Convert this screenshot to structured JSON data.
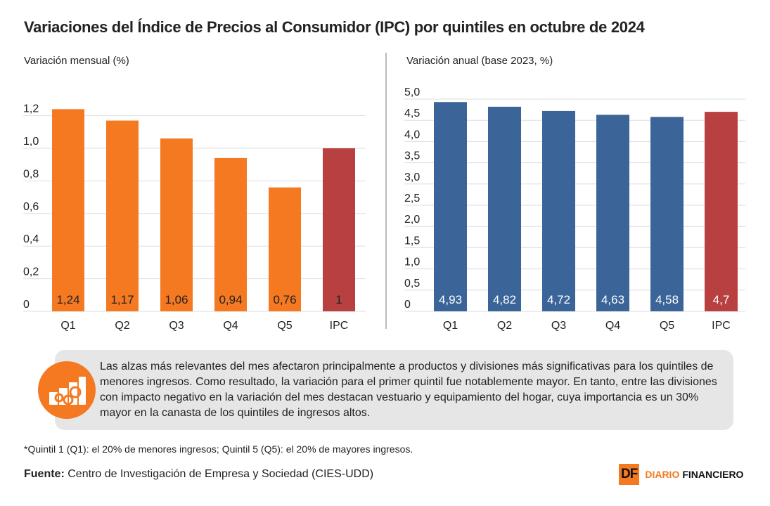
{
  "title": "Variaciones del Índice de Precios al Consumidor (IPC) por quintiles en octubre de 2024",
  "colors": {
    "quintil_left": "#f47920",
    "quintil_right": "#3b6598",
    "ipc": "#b84040",
    "note_bg": "#e6e6e6"
  },
  "chart_data": [
    {
      "type": "bar",
      "title": "Variación mensual (%)",
      "categories": [
        "Q1",
        "Q2",
        "Q3",
        "Q4",
        "Q5",
        "IPC"
      ],
      "values": [
        1.24,
        1.17,
        1.06,
        0.94,
        0.76,
        1
      ],
      "value_labels": [
        "1,24",
        "1,17",
        "1,06",
        "0,94",
        "0,76",
        "1"
      ],
      "ylim": [
        0,
        1.2
      ],
      "yticks": [
        "0",
        "0,2",
        "0,4",
        "0,6",
        "0,8",
        "1,0",
        "1,2"
      ],
      "grid": true
    },
    {
      "type": "bar",
      "title": "Variación anual (base 2023, %)",
      "categories": [
        "Q1",
        "Q2",
        "Q3",
        "Q4",
        "Q5",
        "IPC"
      ],
      "values": [
        4.93,
        4.82,
        4.72,
        4.63,
        4.58,
        4.7
      ],
      "value_labels": [
        "4,93",
        "4,82",
        "4,72",
        "4,63",
        "4,58",
        "4,7"
      ],
      "ylim": [
        0,
        5
      ],
      "yticks": [
        "0",
        "0,5",
        "1,0",
        "1,5",
        "2,0",
        "2,5",
        "3,0",
        "3,5",
        "4,0",
        "4,5",
        "5,0"
      ],
      "grid": true
    }
  ],
  "note": "Las alzas más relevantes del mes afectaron principalmente a productos y divisiones más significativas para los quintiles de menores ingresos. Como resultado, la variación para el primer quintil fue notablemente mayor. En tanto, entre las divisiones con impacto negativo en la variación del mes destacan vestuario y equipamiento del hogar, cuya importancia es un 30% mayor en la canasta de los quintiles de ingresos altos.",
  "footnote": "*Quintil 1 (Q1): el 20% de menores ingresos; Quintil 5 (Q5): el 20% de mayores ingresos.",
  "source_label": "Fuente:",
  "source": "Centro de Investigación de Empresa y Sociedad (CIES-UDD)",
  "logo": {
    "mark": "DF",
    "name1": "DIARIO",
    "name2": "FINANCIERO"
  }
}
